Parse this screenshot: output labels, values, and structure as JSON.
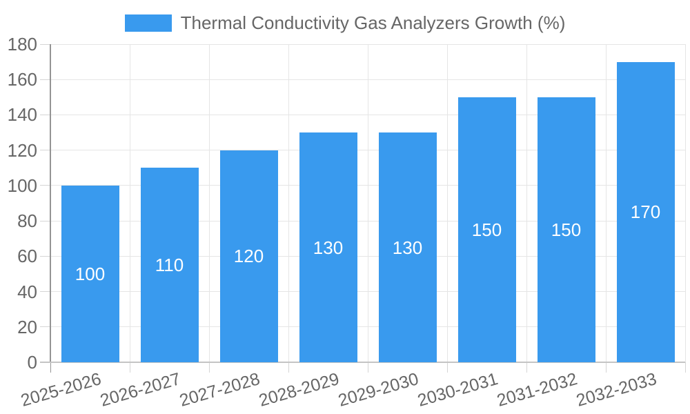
{
  "chart_data": {
    "type": "bar",
    "title": "Thermal Conductivity Gas Analyzers Growth (%)",
    "categories": [
      "2025-2026",
      "2026-2027",
      "2027-2028",
      "2028-2029",
      "2029-2030",
      "2030-2031",
      "2031-2032",
      "2032-2033"
    ],
    "values": [
      100,
      110,
      120,
      130,
      130,
      150,
      150,
      170
    ],
    "xlabel": "",
    "ylabel": "",
    "ylim": [
      0,
      180
    ],
    "ytick_step": 20,
    "ytick_labels": [
      "0",
      "20",
      "40",
      "60",
      "80",
      "100",
      "120",
      "140",
      "160",
      "180"
    ],
    "grid": "both",
    "legend_position": "top-center",
    "value_labels": "inside-center",
    "colors": {
      "bar": "#399AEE",
      "value_label": "#FFFFFF",
      "tick_text": "#666666",
      "legend_text": "#666666",
      "gridline": "#E5E5E5",
      "y_axis_line": "#949494",
      "x_axis_line": "#C4C4C4",
      "tick_mark": "#D5D5D5",
      "background": "#FFFFFF"
    }
  }
}
